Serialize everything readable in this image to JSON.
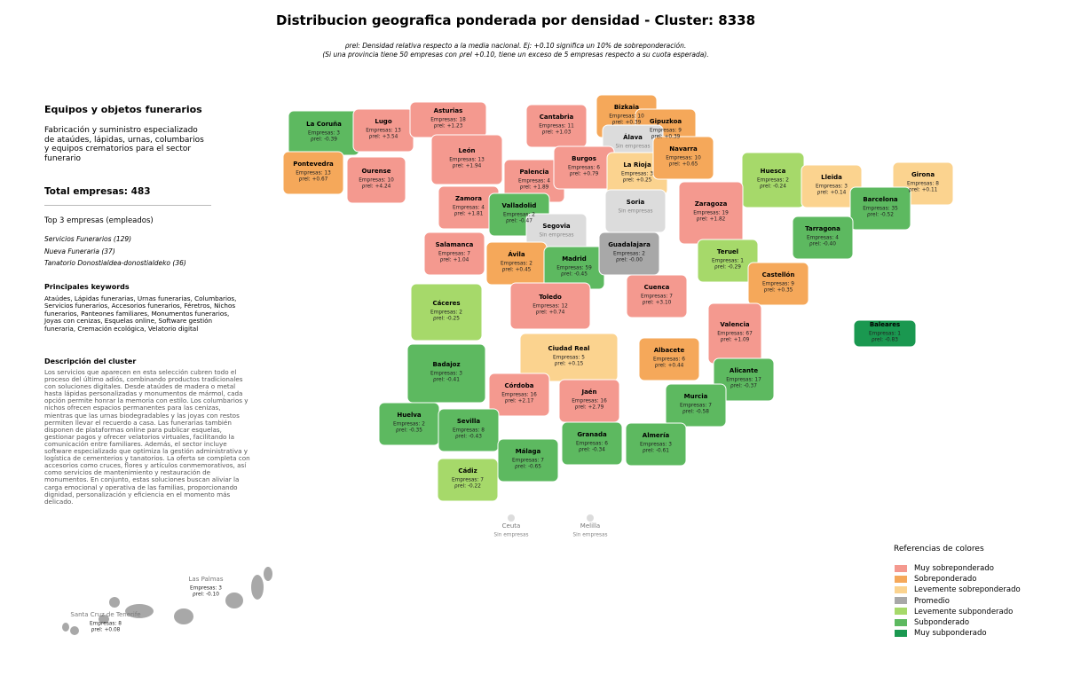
{
  "header": {
    "title": "Distribucion geografica ponderada por densidad - Cluster: 8338",
    "subtitle": [
      "ρrel: Densidad relativa respecto a la media nacional. Ej: +0.10 significa un 10% de sobreponderación.",
      "(Si una provincia tiene 50 empresas con ρrel +0.10, tiene un exceso de 5 empresas respecto a su cuota esperada)."
    ]
  },
  "sidebar": {
    "heading": "Equipos y objetos funerarios",
    "description": "Fabricación y suministro especializado de ataúdes, lápidas, urnas, columbarios y equipos crematorios para el sector funerario",
    "total": "Total empresas: 483",
    "top_title": "Top 3 empresas (empleados)",
    "top": [
      "Servicios Funerarios (129)",
      "Nueva Funeraria (37)",
      "Tanatorio Donostialdea-donostialdeko (36)"
    ],
    "keywords_title": "Principales keywords",
    "keywords": "Ataúdes, Lápidas funerarias, Urnas funerarias, Columbarios, Servicios funerarios, Accesorios funerarios, Féretros, Nichos funerarios, Panteones familiares, Monumentos funerarios, Joyas con cenizas, Esquelas online, Software gestión funeraria, Cremación ecológica, Velatorio digital",
    "cluster_title": "Descripción del cluster",
    "cluster_text": "Los servicios que aparecen en esta selección cubren todo el proceso del último adiós, combinando productos tradicionales con soluciones digitales. Desde ataúdes de madera o metal hasta lápidas personalizadas y monumentos de mármol, cada opción permite honrar la memoria con estilo. Los columbarios y nichos ofrecen espacios permanentes para las cenizas, mientras que las urnas biodegradables y las joyas con restos permiten llevar el recuerdo a casa. Las funerarias también disponen de plataformas online para publicar esquelas, gestionar pagos y ofrecer velatorios virtuales, facilitando la comunicación entre familiares. Además, el sector incluye software especializado que optimiza la gestión administrativa y logística de cementerios y tanatorios. La oferta se completa con accesorios como cruces, flores y artículos conmemorativos, así como servicios de mantenimiento y restauración de monumentos. En conjunto, estas soluciones buscan aliviar la carga emocional y operativa de las familias, proporcionando dignidad, personalización y eficiencia en el momento más delicado."
  },
  "legend": {
    "title": "Referencias de colores",
    "items": [
      {
        "label": "Muy sobreponderado",
        "color": "#f4998f"
      },
      {
        "label": "Sobreponderado",
        "color": "#f5a85a"
      },
      {
        "label": "Levemente sobreponderado",
        "color": "#fbd38f"
      },
      {
        "label": "Promedio",
        "color": "#a8a8a8"
      },
      {
        "label": "Levemente subponderado",
        "color": "#a6d96a"
      },
      {
        "label": "Subponderado",
        "color": "#5db960"
      },
      {
        "label": "Muy subponderado",
        "color": "#1a9850"
      }
    ],
    "empty_color": "#dcdcdc"
  },
  "provinces": [
    {
      "name": "La Coruña",
      "count": "Empresas: 3",
      "rho": "ρrel: -0.39",
      "category": 5
    },
    {
      "name": "Lugo",
      "count": "Empresas: 13",
      "rho": "ρrel: +3.54",
      "category": 0
    },
    {
      "name": "Asturias",
      "count": "Empresas: 18",
      "rho": "ρrel: +1.23",
      "category": 0
    },
    {
      "name": "Cantabria",
      "count": "Empresas: 11",
      "rho": "ρrel: +1.03",
      "category": 0
    },
    {
      "name": "Bizkaia",
      "count": "Empresas: 10",
      "rho": "ρrel: +0.39",
      "category": 1
    },
    {
      "name": "Gipuzkoa",
      "count": "Empresas: 9",
      "rho": "ρrel: +0.39",
      "category": 1
    },
    {
      "name": "Álava",
      "count": "Sin empresas",
      "category": null
    },
    {
      "name": "Pontevedra",
      "count": "Empresas: 13",
      "rho": "ρrel: +0.67",
      "category": 1
    },
    {
      "name": "Ourense",
      "count": "Empresas: 10",
      "rho": "ρrel: +4.24",
      "category": 0
    },
    {
      "name": "León",
      "count": "Empresas: 13",
      "rho": "ρrel: +1.94",
      "category": 0
    },
    {
      "name": "Palencia",
      "count": "Empresas: 4",
      "rho": "ρrel: +1.89",
      "category": 0
    },
    {
      "name": "Burgos",
      "count": "Empresas: 6",
      "rho": "ρrel: +0.79",
      "category": 0
    },
    {
      "name": "La Rioja",
      "count": "Empresas: 3",
      "rho": "ρrel: +0.25",
      "category": 2
    },
    {
      "name": "Navarra",
      "count": "Empresas: 10",
      "rho": "ρrel: +0.65",
      "category": 1
    },
    {
      "name": "Huesca",
      "count": "Empresas: 2",
      "rho": "ρrel: -0.24",
      "category": 4
    },
    {
      "name": "Lleida",
      "count": "Empresas: 3",
      "rho": "ρrel: +0.14",
      "category": 2
    },
    {
      "name": "Girona",
      "count": "Empresas: 8",
      "rho": "ρrel: +0.11",
      "category": 2
    },
    {
      "name": "Zamora",
      "count": "Empresas: 4",
      "rho": "ρrel: +1.81",
      "category": 0
    },
    {
      "name": "Valladolid",
      "count": "Empresas: 2",
      "rho": "ρrel: -0.47",
      "category": 5
    },
    {
      "name": "Soria",
      "count": "Sin empresas",
      "category": null
    },
    {
      "name": "Zaragoza",
      "count": "Empresas: 19",
      "rho": "ρrel: +1.82",
      "category": 0
    },
    {
      "name": "Barcelona",
      "count": "Empresas: 35",
      "rho": "ρrel: -0.52",
      "category": 5
    },
    {
      "name": "Segovia",
      "count": "Sin empresas",
      "category": null
    },
    {
      "name": "Tarragona",
      "count": "Empresas: 4",
      "rho": "ρrel: -0.40",
      "category": 5
    },
    {
      "name": "Salamanca",
      "count": "Empresas: 7",
      "rho": "ρrel: +1.04",
      "category": 0
    },
    {
      "name": "Ávila",
      "count": "Empresas: 2",
      "rho": "ρrel: +0.45",
      "category": 1
    },
    {
      "name": "Madrid",
      "count": "Empresas: 59",
      "rho": "ρrel: -0.45",
      "category": 5
    },
    {
      "name": "Guadalajara",
      "count": "Empresas: 2",
      "rho": "ρrel: -0.00",
      "category": 3
    },
    {
      "name": "Teruel",
      "count": "Empresas: 1",
      "rho": "ρrel: -0.29",
      "category": 4
    },
    {
      "name": "Castellón",
      "count": "Empresas: 9",
      "rho": "ρrel: +0.35",
      "category": 1
    },
    {
      "name": "Cáceres",
      "count": "Empresas: 2",
      "rho": "ρrel: -0.25",
      "category": 4
    },
    {
      "name": "Toledo",
      "count": "Empresas: 12",
      "rho": "ρrel: +0.74",
      "category": 0
    },
    {
      "name": "Cuenca",
      "count": "Empresas: 7",
      "rho": "ρrel: +3.10",
      "category": 0
    },
    {
      "name": "Valencia",
      "count": "Empresas: 67",
      "rho": "ρrel: +1.09",
      "category": 0
    },
    {
      "name": "Baleares",
      "count": "Empresas: 1",
      "rho": "ρrel: -0.83",
      "category": 6
    },
    {
      "name": "Ciudad Real",
      "count": "Empresas: 5",
      "rho": "ρrel: +0.15",
      "category": 2
    },
    {
      "name": "Albacete",
      "count": "Empresas: 6",
      "rho": "ρrel: +0.44",
      "category": 1
    },
    {
      "name": "Badajoz",
      "count": "Empresas: 3",
      "rho": "ρrel: -0.41",
      "category": 5
    },
    {
      "name": "Alicante",
      "count": "Empresas: 17",
      "rho": "ρrel: -0.37",
      "category": 5
    },
    {
      "name": "Córdoba",
      "count": "Empresas: 16",
      "rho": "ρrel: +2.17",
      "category": 0
    },
    {
      "name": "Jaén",
      "count": "Empresas: 16",
      "rho": "ρrel: +2.79",
      "category": 0
    },
    {
      "name": "Murcia",
      "count": "Empresas: 7",
      "rho": "ρrel: -0.58",
      "category": 5
    },
    {
      "name": "Huelva",
      "count": "Empresas: 2",
      "rho": "ρrel: -0.35",
      "category": 5
    },
    {
      "name": "Sevilla",
      "count": "Empresas: 8",
      "rho": "ρrel: -0.43",
      "category": 5
    },
    {
      "name": "Granada",
      "count": "Empresas: 6",
      "rho": "ρrel: -0.34",
      "category": 5
    },
    {
      "name": "Almería",
      "count": "Empresas: 3",
      "rho": "ρrel: -0.61",
      "category": 5
    },
    {
      "name": "Málaga",
      "count": "Empresas: 7",
      "rho": "ρrel: -0.65",
      "category": 5
    },
    {
      "name": "Cádiz",
      "count": "Empresas: 7",
      "rho": "ρrel: -0.22",
      "category": 4
    },
    {
      "name": "Ceuta",
      "count": "Sin empresas",
      "category": null
    },
    {
      "name": "Melilla",
      "count": "Sin empresas",
      "category": null
    },
    {
      "name": "Las Palmas",
      "count": "Empresas: 3",
      "rho": "ρrel: -0.10",
      "category": 3
    },
    {
      "name": "Santa Cruz de Tenerife",
      "count": "Empresas: 8",
      "rho": "ρrel: +0.08",
      "category": 3
    }
  ]
}
